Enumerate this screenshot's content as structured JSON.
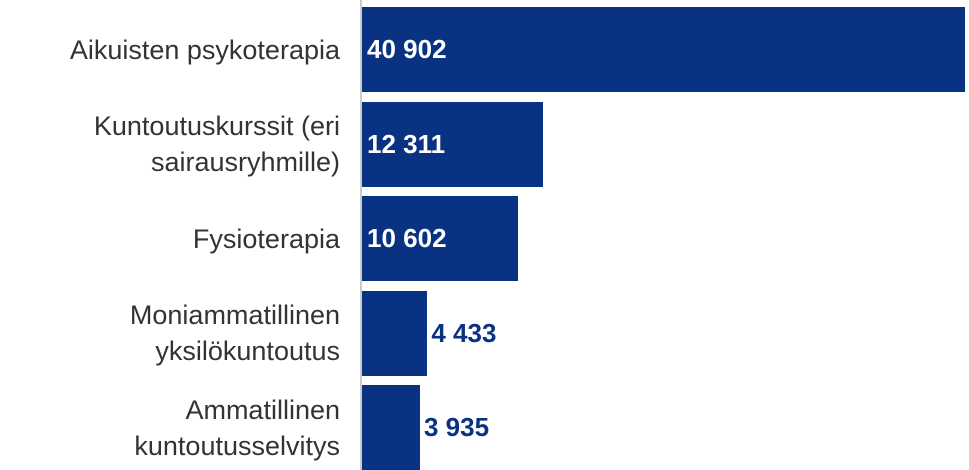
{
  "chart_data": {
    "type": "bar",
    "orientation": "horizontal",
    "categories": [
      "Aikuisten psykoterapia",
      "Kuntoutuskurssit (eri sairausryhmille)",
      "Fysioterapia",
      "Moniammatillinen yksilökuntoutus",
      "Ammatillinen kuntoutusselvitys"
    ],
    "values": [
      40902,
      12311,
      10602,
      4433,
      3935
    ],
    "value_labels": [
      "40 902",
      "12 311",
      "10 602",
      "4 433",
      "3 935"
    ],
    "color": "#0a3282"
  }
}
